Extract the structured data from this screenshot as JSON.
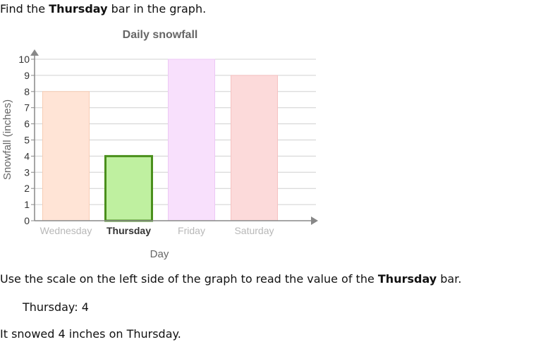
{
  "text": {
    "intro_prefix": "Find the ",
    "intro_bold": "Thursday",
    "intro_suffix": " bar in the graph.",
    "explain_prefix": "Use the scale on the left side of the graph to read the value of the ",
    "explain_bold": "Thursday",
    "explain_suffix": " bar.",
    "answer_label": "Thursday:",
    "answer_value": "4",
    "conclusion": "It snowed 4 inches on Thursday."
  },
  "chart_data": {
    "type": "bar",
    "title": "Daily snowfall",
    "xlabel": "Day",
    "ylabel": "Snowfall (inches)",
    "categories": [
      "Wednesday",
      "Thursday",
      "Friday",
      "Saturday"
    ],
    "values": [
      8,
      4,
      10,
      9
    ],
    "ylim": [
      0,
      10
    ],
    "yticks": [
      0,
      1,
      2,
      3,
      4,
      5,
      6,
      7,
      8,
      9,
      10
    ],
    "grid": true,
    "highlight": "Thursday",
    "colors": {
      "fills": [
        "#ffe4d6",
        "#bff0a0",
        "#f8e0fc",
        "#fcdada"
      ],
      "strokes": [
        "#f8cdb4",
        "#4a8f1c",
        "#ecc8f6",
        "#f6c2c2"
      ],
      "grid": "#d0d0d0",
      "axis": "#888888"
    }
  }
}
